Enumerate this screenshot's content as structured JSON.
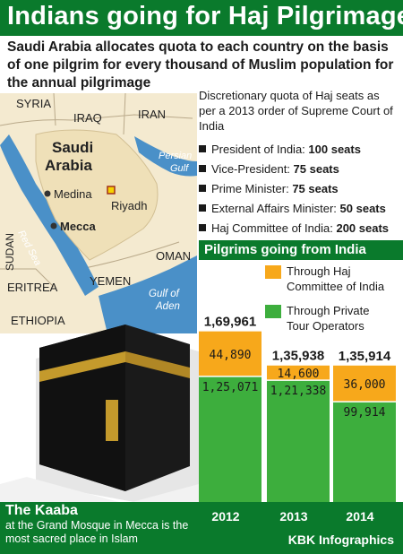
{
  "header": {
    "title": "Indians going for Haj Pilgrimage",
    "subtitle": "Saudi Arabia allocates quota to each country on the basis of one pilgrim for every thousand of Muslim population for the annual pilgrimage"
  },
  "map": {
    "labels": {
      "syria": "SYRIA",
      "iraq": "IRAQ",
      "iran": "IRAN",
      "saudi": "Saudi",
      "arabia": "Arabia",
      "persian": "Persian",
      "gulf": "Gulf",
      "medina": "Medina",
      "riyadh": "Riyadh",
      "mecca": "Mecca",
      "red_sea": "Red Sea",
      "sudan": "SUDAN",
      "oman": "OMAN",
      "eritrea": "ERITREA",
      "yemen": "YEMEN",
      "gulf_of": "Gulf of",
      "aden": "Aden",
      "ethiopia": "ETHIOPIA"
    }
  },
  "quota": {
    "heading": "Discretionary quota of Haj seats as per a 2013 order of Supreme Court of India",
    "items": [
      {
        "label": "President of India:",
        "value": "100 seats"
      },
      {
        "label": "Vice-President:",
        "value": "75 seats"
      },
      {
        "label": "Prime Minister:",
        "value": "75 seats"
      },
      {
        "label": "External Affairs Minister:",
        "value": "50 seats"
      },
      {
        "label": "Haj Committee of India:",
        "value": "200 seats"
      }
    ]
  },
  "chart_data": {
    "type": "bar",
    "stacked": true,
    "title": "Pilgrims going from India",
    "categories": [
      "2012",
      "2013",
      "2014"
    ],
    "totals": [
      169961,
      135938,
      135914
    ],
    "total_labels": [
      "1,69,961",
      "1,35,938",
      "1,35,914"
    ],
    "series": [
      {
        "name": "Through Private Tour Operators",
        "color": "#3dae3d",
        "values": [
          125071,
          121338,
          99914
        ],
        "labels": [
          "1,25,071",
          "1,21,338",
          "99,914"
        ]
      },
      {
        "name": "Through Haj Committee of India",
        "color": "#f7a81b",
        "values": [
          44890,
          14600,
          36000
        ],
        "labels": [
          "44,890",
          "14,600",
          "36,000"
        ]
      }
    ],
    "legend_order": [
      "Through Haj Committee of India",
      "Through Private Tour Operators"
    ]
  },
  "legend": {
    "haj": "Through Haj Committee of India",
    "private": "Through Private Tour Operators"
  },
  "caption": {
    "title": "The Kaaba",
    "body": "at the Grand Mosque in Mecca is the most sacred place in Islam"
  },
  "credit": "KBK Infographics",
  "colors": {
    "header_green": "#0a7a2c",
    "bar_green": "#3dae3d",
    "bar_orange": "#f7a81b",
    "sea_blue": "#4a90c8",
    "land": "#f4ead0"
  }
}
